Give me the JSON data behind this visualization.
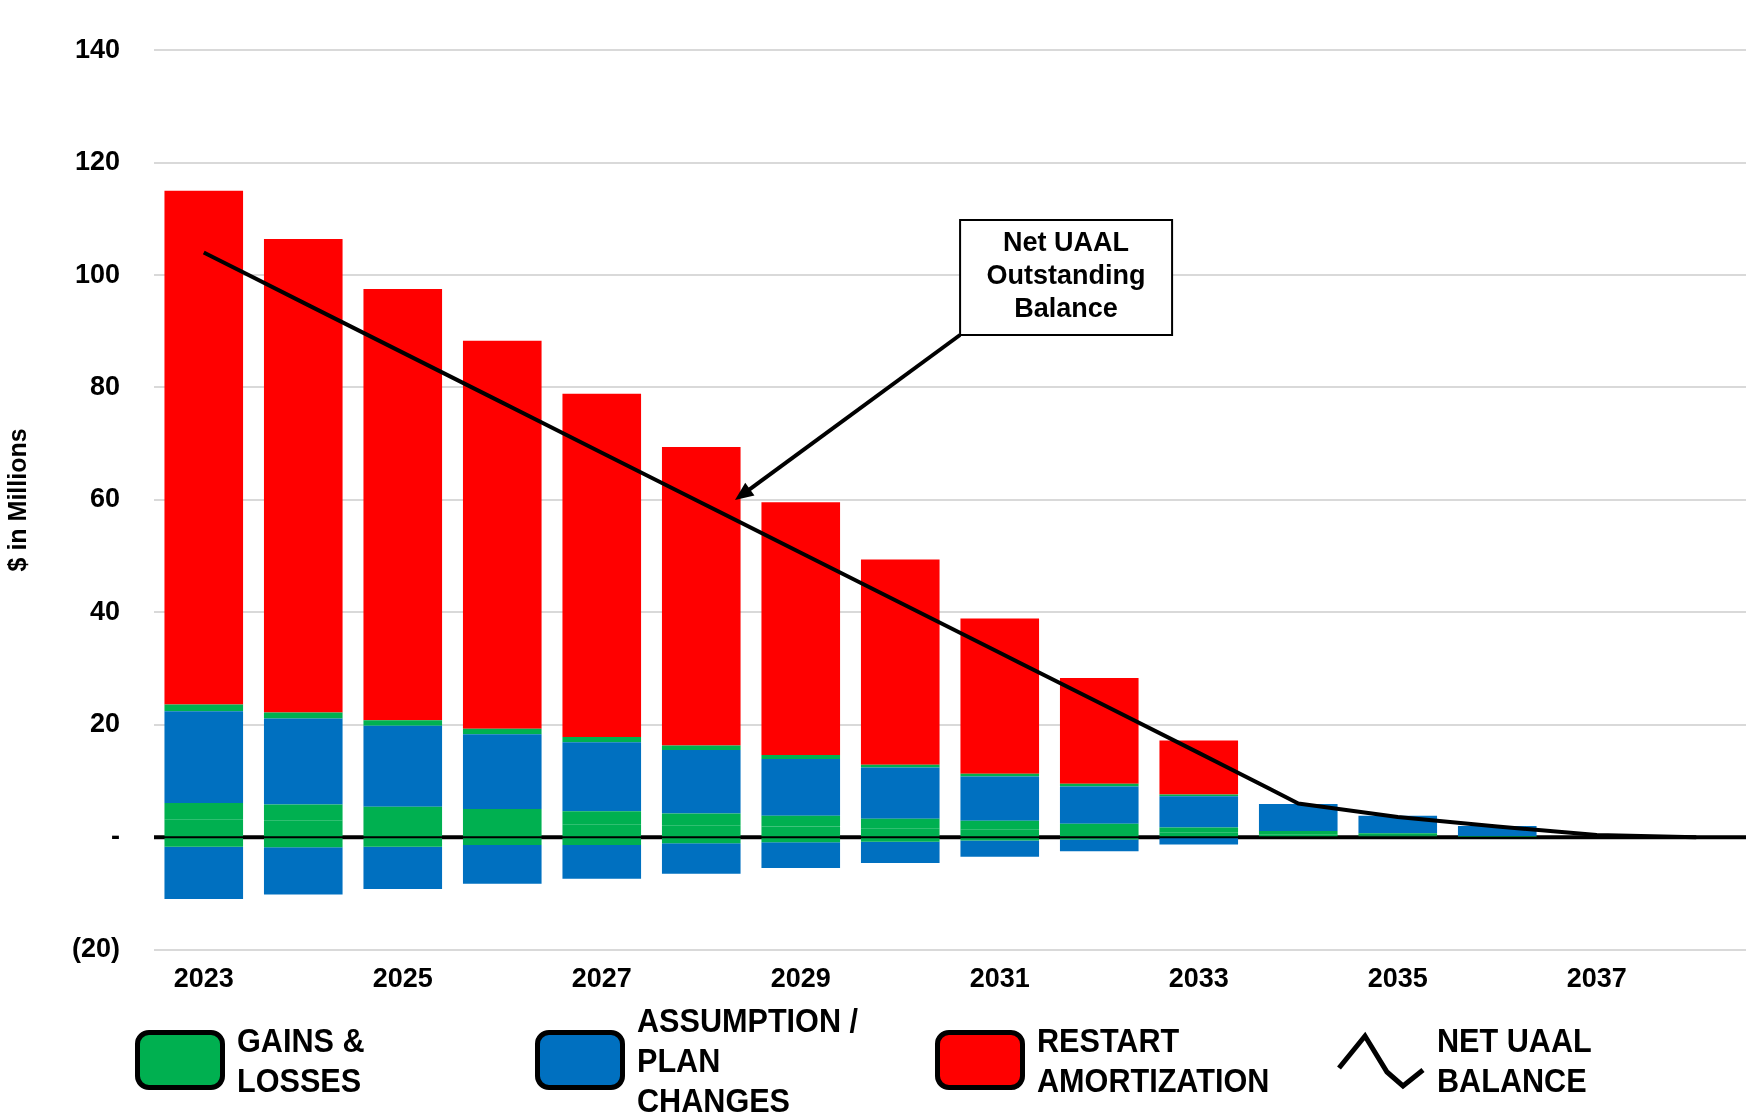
{
  "chart_data": {
    "type": "bar",
    "stacked": true,
    "ylabel": "$ in Millions",
    "categories": [
      "2023",
      null,
      "2025",
      null,
      "2027",
      null,
      "2029",
      null,
      "2031",
      null,
      "2033",
      null,
      "2035",
      null,
      "2037",
      null
    ],
    "ylim": [
      -20,
      140
    ],
    "yticks": [
      {
        "value": -20,
        "label": "(20)"
      },
      {
        "value": 0,
        "label": "-"
      },
      20,
      40,
      60,
      80,
      100,
      120,
      140
    ],
    "grid": "y",
    "legend": "bottom",
    "ref_lines": [
      {
        "axis": "y",
        "value": 0,
        "color": "#000000"
      }
    ],
    "annotations": [
      "Net UAAL Outstanding Balance"
    ],
    "series": [
      {
        "name": "GAINS & LOSSES",
        "color": "#00b050",
        "values": [
          3.1,
          2.9,
          2.7,
          2.5,
          2.3,
          2.1,
          1.9,
          1.6,
          1.4,
          1.1,
          0.8,
          0.5,
          0.3,
          0.1,
          null,
          null
        ]
      },
      {
        "color": "#00b050",
        "values": [
          3.0,
          2.9,
          2.7,
          2.5,
          2.3,
          2.1,
          1.9,
          1.7,
          1.5,
          1.3,
          0.9,
          0.6,
          0.4,
          0.1,
          null,
          null
        ]
      },
      {
        "name": "ASSUMPTION / PLAN CHANGES",
        "color": "#0070c0",
        "values": [
          16.3,
          15.3,
          14.4,
          13.3,
          12.3,
          11.3,
          10.1,
          9.1,
          7.9,
          6.6,
          5.6,
          4.8,
          3.1,
          1.8,
          null,
          null
        ]
      },
      {
        "color": "#00b050",
        "values": [
          1.2,
          1.1,
          1.0,
          1.0,
          0.9,
          0.8,
          0.7,
          0.5,
          0.5,
          0.5,
          0.3,
          null,
          null,
          null,
          null,
          null
        ]
      },
      {
        "name": "RESTART AMORTIZATION",
        "color": "#ff0000",
        "values": [
          91.4,
          84.2,
          76.7,
          69.0,
          61.1,
          53.1,
          45.0,
          36.5,
          27.6,
          18.8,
          9.6,
          null,
          null,
          null,
          null,
          null
        ]
      },
      {
        "color": "#00b050",
        "values": [
          -1.7,
          -1.8,
          -1.7,
          -1.4,
          -1.4,
          -1.1,
          -0.9,
          -0.8,
          -0.6,
          -0.4,
          -0.2,
          null,
          null,
          null,
          null,
          null
        ]
      },
      {
        "color": "#0070c0",
        "values": [
          -9.3,
          -8.4,
          -7.5,
          -6.9,
          -6.0,
          -5.4,
          -4.6,
          -3.8,
          -2.9,
          -2.1,
          -1.1,
          null,
          null,
          null,
          null,
          null
        ]
      },
      {
        "name": "NET UAAL BALANCE",
        "type": "line",
        "color": "#000000",
        "values": [
          104,
          95.1,
          86.2,
          77.3,
          68.4,
          59.5,
          50.6,
          41.7,
          32.8,
          23.9,
          15.0,
          6.0,
          3.6,
          1.9,
          0.4,
          0
        ]
      }
    ]
  }
}
